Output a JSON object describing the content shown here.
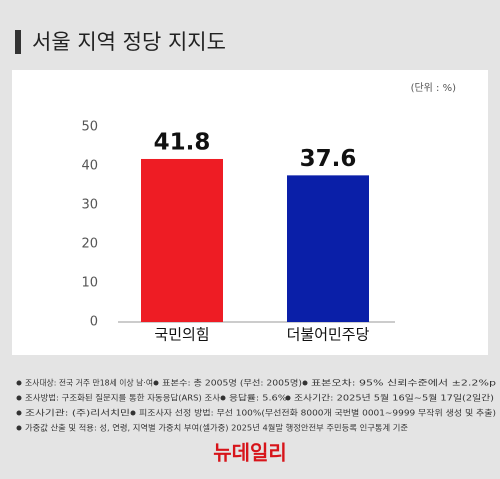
{
  "chart_data": {
    "type": "bar",
    "title": "서울 지역 정당 지지도",
    "unit_label": "(단위 : %)",
    "categories": [
      "국민의힘",
      "더불어민주당"
    ],
    "values": [
      41.8,
      37.6
    ],
    "colors": [
      "#ee1c24",
      "#0a1fa8"
    ],
    "ylim": [
      0,
      50
    ],
    "yticks": [
      0,
      10,
      20,
      30,
      40,
      50
    ],
    "grid": false
  },
  "notes": [
    [
      "조사대상: 전국 거주 만18세 이상 남·여",
      "표본수: 총 2005명 (무선: 2005명)",
      "표본오차: 95% 신뢰수준에서 ±2.2%p"
    ],
    [
      "조사방법: 구조화된 질문지를 통한 자동응답(ARS) 조사",
      "응답률: 5.6%",
      "조사기간: 2025년 5월 16일~5월 17일(2일간)"
    ],
    [
      "조사기관: (주)리서치민",
      "피조사자 선정 방법: 무선 100%(무선전화 8000개 국번별 0001~9999 무작위 생성 및 추출)"
    ],
    [
      "가중값 산출 및 적용: 성, 연령, 지역별 가중치 부여(셀가중) 2025년 4월말 행정안전부 주민등록 인구통계 기준"
    ]
  ],
  "logo": "뉴데일리"
}
